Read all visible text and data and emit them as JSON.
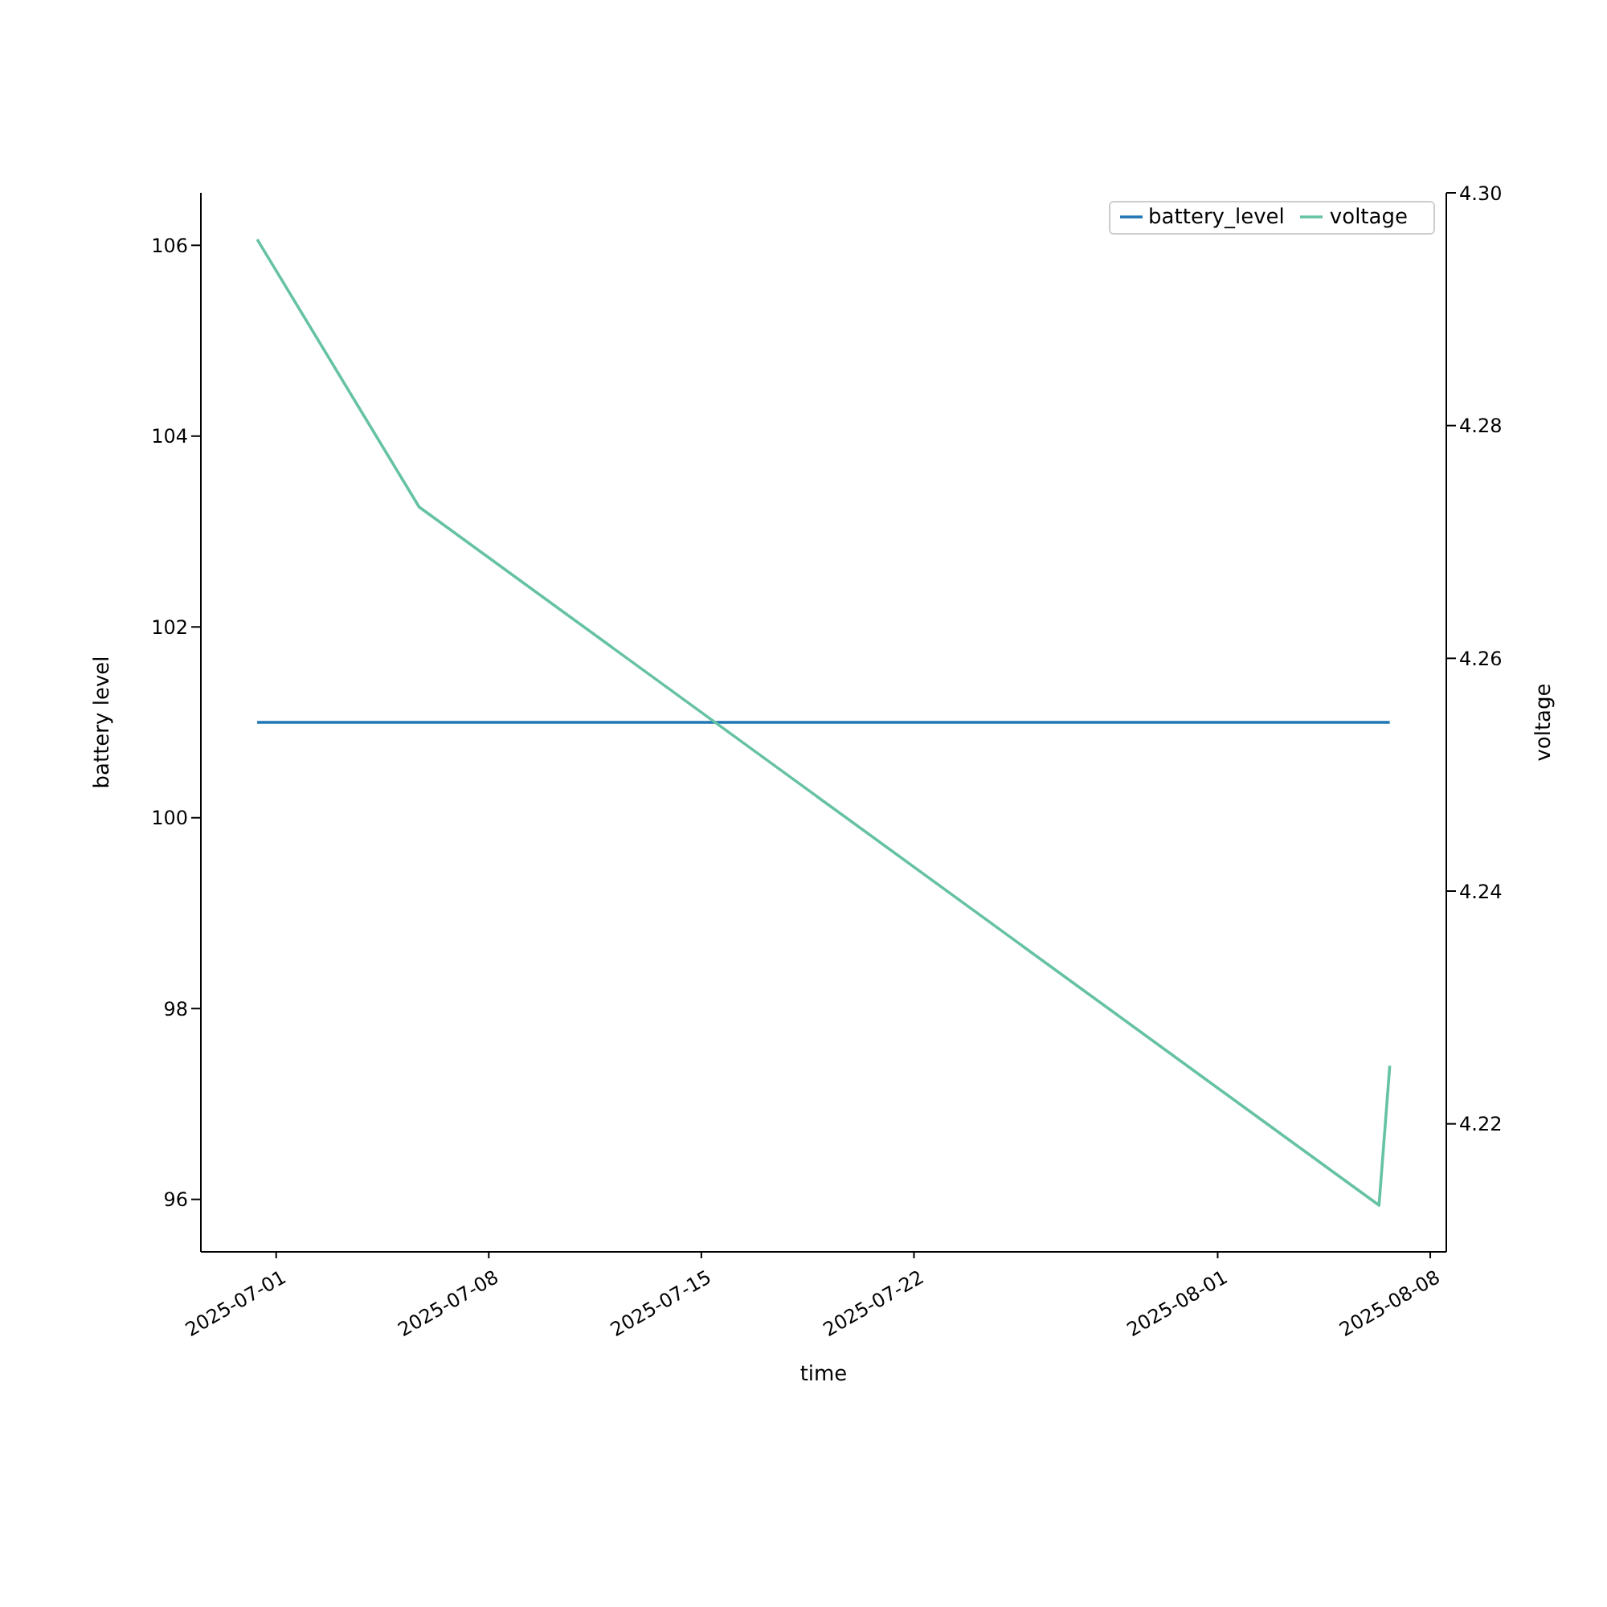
{
  "chart_data": {
    "type": "line",
    "xlabel": "time",
    "ylabel": "battery level",
    "y2label": "voltage",
    "xlim": [
      "2025-06-28T12:30",
      "2025-08-08T12:40"
    ],
    "xticks": [
      "2025-07-01",
      "2025-07-08",
      "2025-07-15",
      "2025-07-22",
      "2025-08-01",
      "2025-08-08"
    ],
    "ylim": [
      95.45,
      106.55
    ],
    "yticks": [
      96,
      98,
      100,
      102,
      104,
      106
    ],
    "y2lim": [
      4.209,
      4.3
    ],
    "y2ticks": [
      4.22,
      4.24,
      4.26,
      4.28,
      {
        "value": 4.3,
        "label": "4.30"
      }
    ],
    "legend": "top right",
    "grid": false,
    "series": [
      {
        "name": "battery_level",
        "color": "#1f77b4",
        "x": [
          "2025-06-30T09:00",
          "2025-08-06T16:00"
        ],
        "values": [
          101,
          101
        ]
      },
      {
        "name": "voltage",
        "color": "#66c2a5",
        "axis": "y2",
        "x": [
          "2025-06-30T09:00",
          "2025-07-05T17:00",
          "2025-08-06T07:30",
          "2025-08-06T16:00"
        ],
        "values": [
          4.296,
          4.273,
          4.213,
          4.225
        ]
      }
    ]
  }
}
